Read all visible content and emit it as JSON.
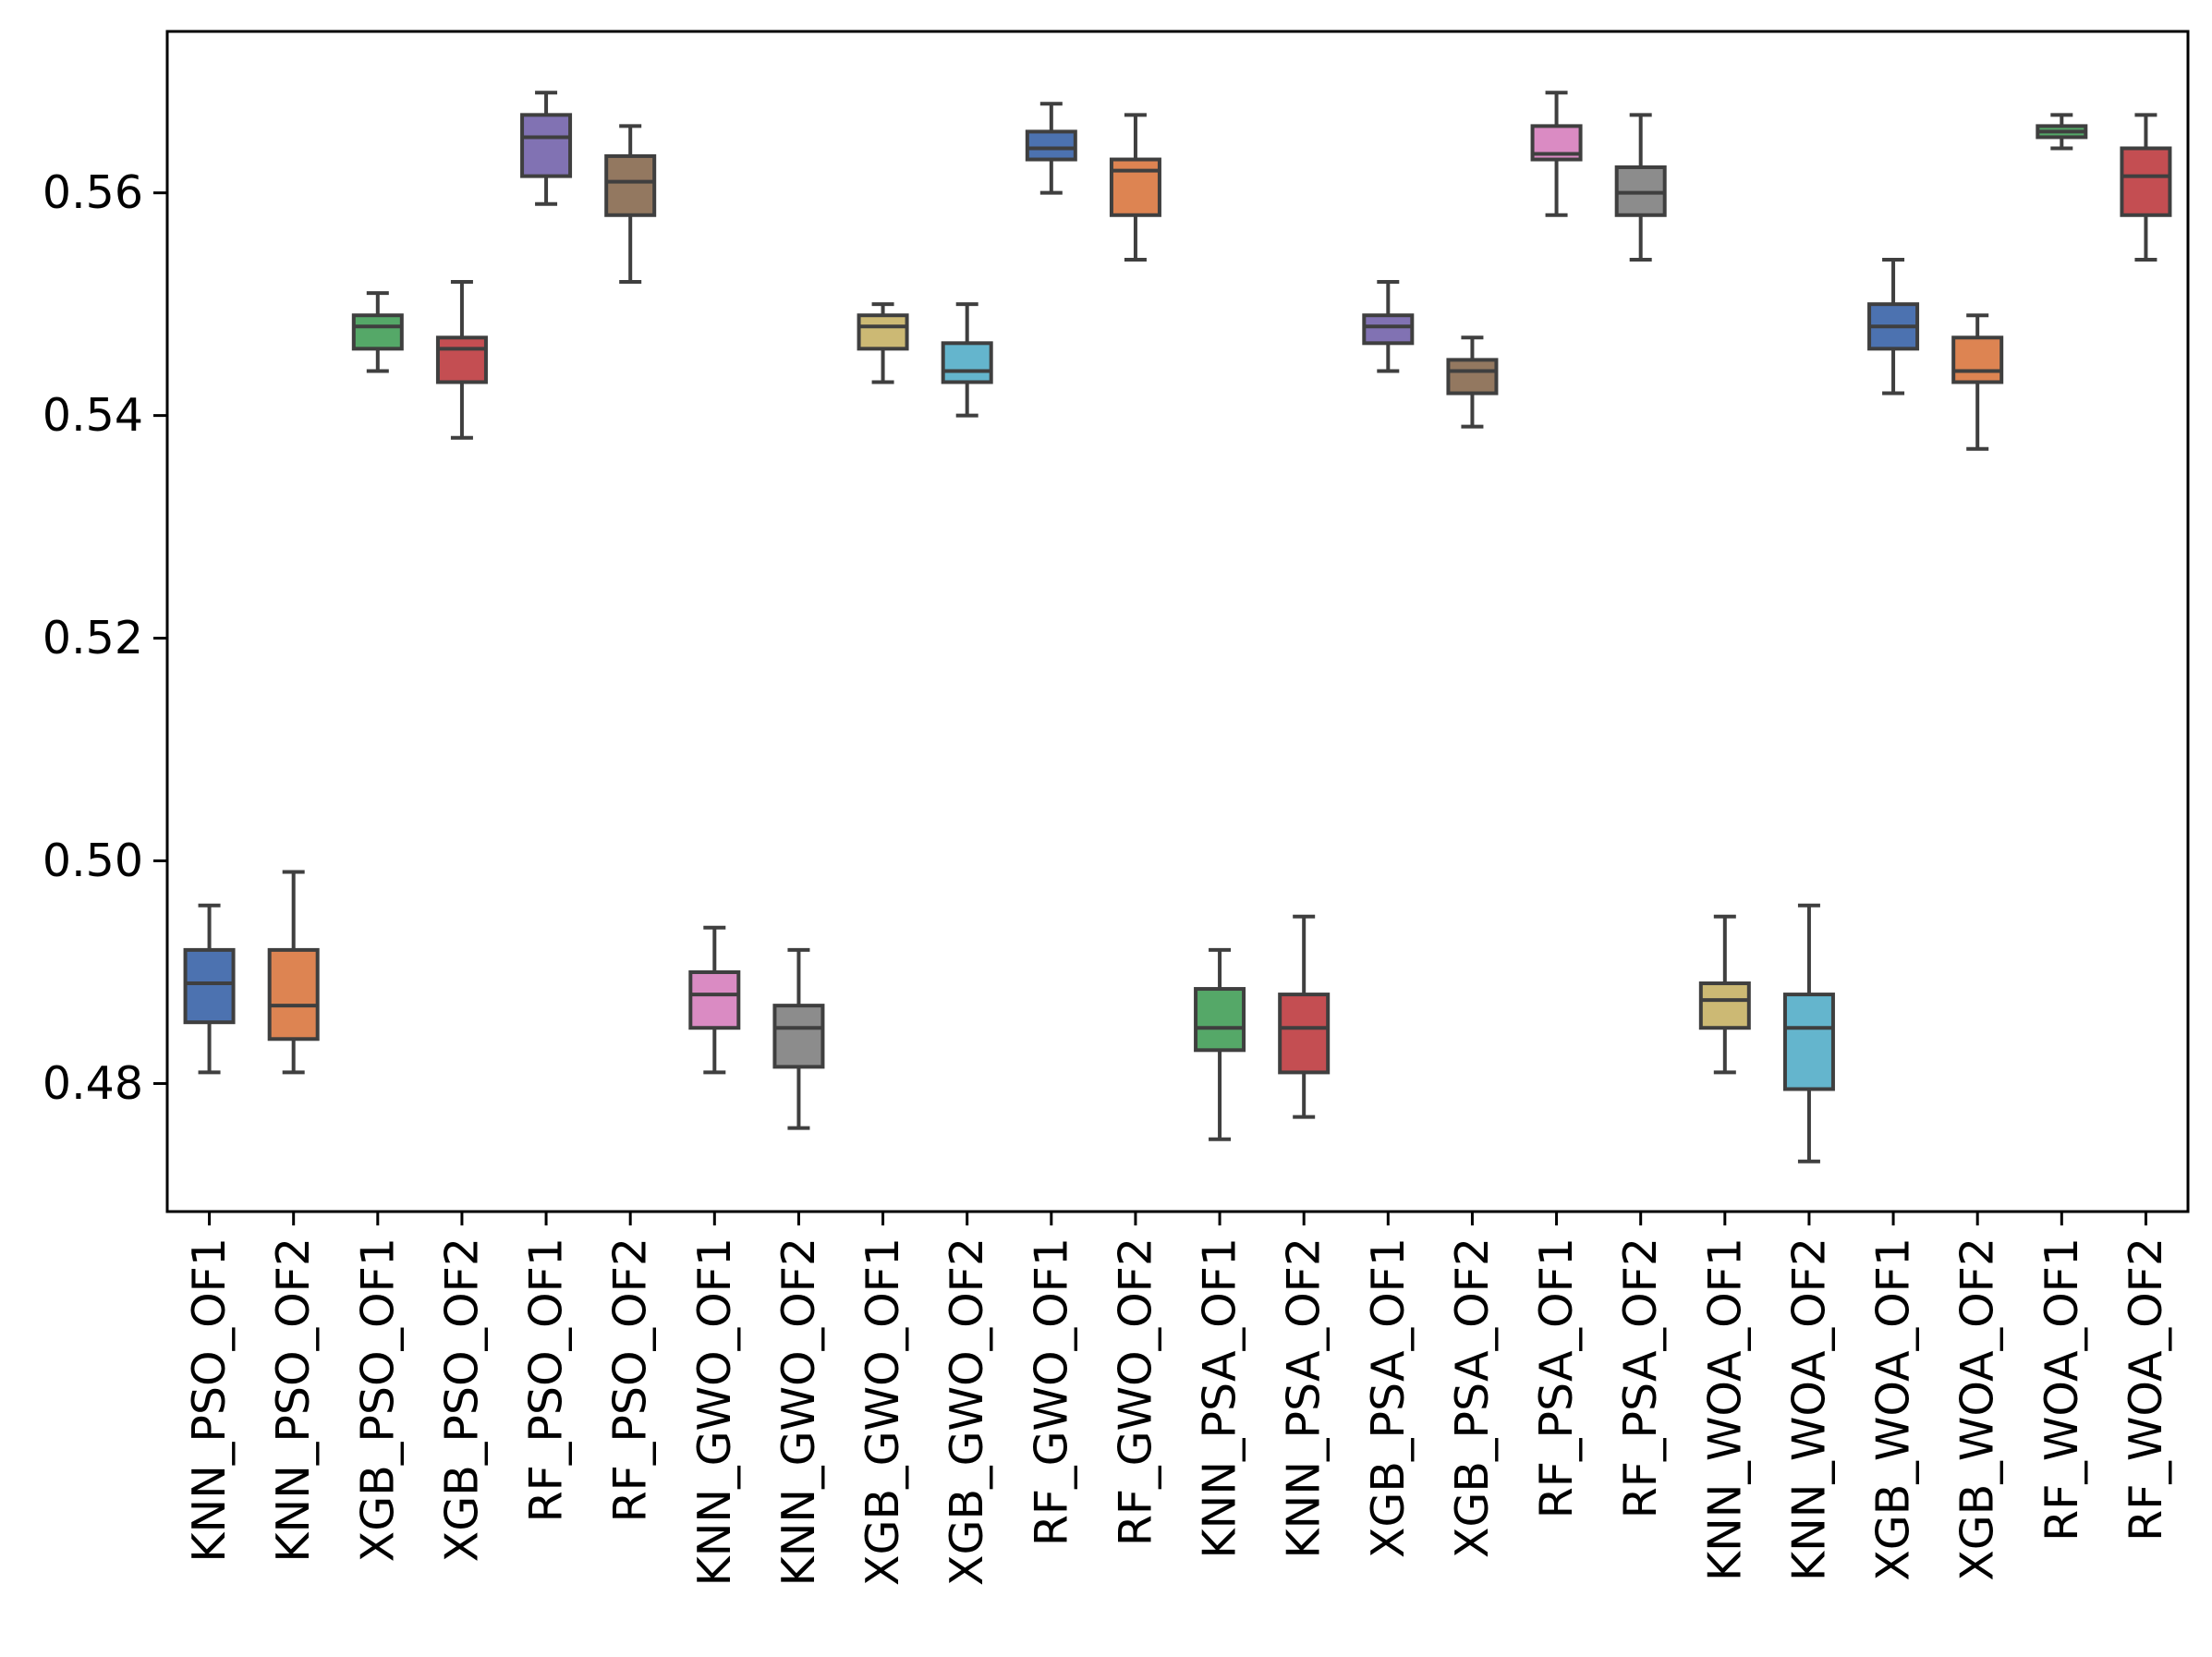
{
  "chart_data": {
    "type": "box",
    "title": "",
    "xlabel": "",
    "ylabel": "",
    "ylim": [
      0.4685,
      0.5745
    ],
    "yticks": [
      0.48,
      0.5,
      0.52,
      0.54,
      0.56
    ],
    "ytick_labels": [
      "0.48",
      "0.50",
      "0.52",
      "0.54",
      "0.56"
    ],
    "grid": false,
    "legend": "none",
    "categories": [
      "KNN_PSO_OF1",
      "KNN_PSO_OF2",
      "XGB_PSO_OF1",
      "XGB_PSO_OF2",
      "RF_PSO_OF1",
      "RF_PSO_OF2",
      "KNN_GWO_OF1",
      "KNN_GWO_OF2",
      "XGB_GWO_OF1",
      "XGB_GWO_OF2",
      "RF_GWO_OF1",
      "RF_GWO_OF2",
      "KNN_PSA_OF1",
      "KNN_PSA_OF2",
      "XGB_PSA_OF1",
      "XGB_PSA_OF2",
      "RF_PSA_OF1",
      "RF_PSA_OF2",
      "KNN_WOA_OF1",
      "KNN_WOA_OF2",
      "XGB_WOA_OF1",
      "XGB_WOA_OF2",
      "RF_WOA_OF1",
      "RF_WOA_OF2"
    ],
    "boxes": [
      {
        "min": 0.481,
        "q1": 0.4855,
        "median": 0.489,
        "q3": 0.492,
        "max": 0.496,
        "color": "#4c72b0"
      },
      {
        "min": 0.481,
        "q1": 0.484,
        "median": 0.487,
        "q3": 0.492,
        "max": 0.499,
        "color": "#dd8452"
      },
      {
        "min": 0.544,
        "q1": 0.546,
        "median": 0.548,
        "q3": 0.549,
        "max": 0.551,
        "color": "#55a868"
      },
      {
        "min": 0.538,
        "q1": 0.543,
        "median": 0.546,
        "q3": 0.547,
        "max": 0.552,
        "color": "#c44e52"
      },
      {
        "min": 0.559,
        "q1": 0.5615,
        "median": 0.565,
        "q3": 0.567,
        "max": 0.569,
        "color": "#8172b3"
      },
      {
        "min": 0.552,
        "q1": 0.558,
        "median": 0.561,
        "q3": 0.5633,
        "max": 0.566,
        "color": "#937860"
      },
      {
        "min": 0.481,
        "q1": 0.485,
        "median": 0.488,
        "q3": 0.49,
        "max": 0.494,
        "color": "#da8bc3"
      },
      {
        "min": 0.476,
        "q1": 0.4815,
        "median": 0.485,
        "q3": 0.487,
        "max": 0.492,
        "color": "#8c8c8c"
      },
      {
        "min": 0.543,
        "q1": 0.546,
        "median": 0.548,
        "q3": 0.549,
        "max": 0.55,
        "color": "#ccb974"
      },
      {
        "min": 0.54,
        "q1": 0.543,
        "median": 0.544,
        "q3": 0.5465,
        "max": 0.55,
        "color": "#64b5cd"
      },
      {
        "min": 0.56,
        "q1": 0.563,
        "median": 0.564,
        "q3": 0.5655,
        "max": 0.568,
        "color": "#4c72b0"
      },
      {
        "min": 0.554,
        "q1": 0.558,
        "median": 0.562,
        "q3": 0.563,
        "max": 0.567,
        "color": "#dd8452"
      },
      {
        "min": 0.475,
        "q1": 0.483,
        "median": 0.485,
        "q3": 0.4885,
        "max": 0.492,
        "color": "#55a868"
      },
      {
        "min": 0.477,
        "q1": 0.481,
        "median": 0.485,
        "q3": 0.488,
        "max": 0.495,
        "color": "#c44e52"
      },
      {
        "min": 0.544,
        "q1": 0.5465,
        "median": 0.548,
        "q3": 0.549,
        "max": 0.552,
        "color": "#8172b3"
      },
      {
        "min": 0.539,
        "q1": 0.542,
        "median": 0.544,
        "q3": 0.545,
        "max": 0.547,
        "color": "#937860"
      },
      {
        "min": 0.558,
        "q1": 0.563,
        "median": 0.5635,
        "q3": 0.566,
        "max": 0.569,
        "color": "#da8bc3"
      },
      {
        "min": 0.554,
        "q1": 0.558,
        "median": 0.56,
        "q3": 0.5623,
        "max": 0.567,
        "color": "#8c8c8c"
      },
      {
        "min": 0.481,
        "q1": 0.485,
        "median": 0.4875,
        "q3": 0.489,
        "max": 0.495,
        "color": "#ccb974"
      },
      {
        "min": 0.473,
        "q1": 0.4795,
        "median": 0.485,
        "q3": 0.488,
        "max": 0.496,
        "color": "#64b5cd"
      },
      {
        "min": 0.542,
        "q1": 0.546,
        "median": 0.548,
        "q3": 0.55,
        "max": 0.554,
        "color": "#4c72b0"
      },
      {
        "min": 0.537,
        "q1": 0.543,
        "median": 0.544,
        "q3": 0.547,
        "max": 0.549,
        "color": "#dd8452"
      },
      {
        "min": 0.564,
        "q1": 0.565,
        "median": 0.5655,
        "q3": 0.566,
        "max": 0.567,
        "color": "#55a868"
      },
      {
        "min": 0.554,
        "q1": 0.558,
        "median": 0.5615,
        "q3": 0.564,
        "max": 0.567,
        "color": "#c44e52"
      }
    ],
    "styles": {
      "axis_color": "#000000",
      "whisker_color": "#3f3f3f"
    }
  }
}
